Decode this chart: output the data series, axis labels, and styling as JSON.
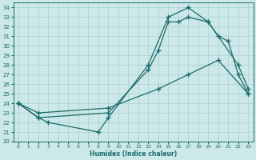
{
  "xlabel": "Humidex (Indice chaleur)",
  "bg_color": "#cce8e8",
  "grid_color": "#aad0d0",
  "line_color": "#1a6b6b",
  "xlim": [
    -0.5,
    23.5
  ],
  "ylim": [
    20,
    34.5
  ],
  "xticks": [
    0,
    1,
    2,
    3,
    4,
    5,
    6,
    7,
    8,
    9,
    10,
    11,
    12,
    13,
    14,
    15,
    16,
    17,
    18,
    19,
    20,
    21,
    22,
    23
  ],
  "yticks": [
    20,
    21,
    22,
    23,
    24,
    25,
    26,
    27,
    28,
    29,
    30,
    31,
    32,
    33,
    34
  ],
  "line1_x": [
    0,
    2,
    3,
    8,
    9,
    13,
    15,
    17,
    19,
    22,
    23
  ],
  "line1_y": [
    24,
    22.5,
    22,
    21,
    22.5,
    28,
    33,
    34,
    32.5,
    28,
    25.5
  ],
  "line2_x": [
    0,
    2,
    9,
    13,
    14,
    15,
    16,
    17,
    19,
    20,
    21,
    22,
    23
  ],
  "line2_y": [
    24,
    22.5,
    23,
    27.5,
    29.5,
    32.5,
    32.5,
    33,
    32.5,
    31,
    30.5,
    27,
    25
  ],
  "line3_x": [
    0,
    2,
    9,
    14,
    17,
    20,
    23
  ],
  "line3_y": [
    24,
    23,
    23.5,
    25.5,
    27,
    28.5,
    25
  ],
  "markersize": 3,
  "linewidth": 0.9
}
